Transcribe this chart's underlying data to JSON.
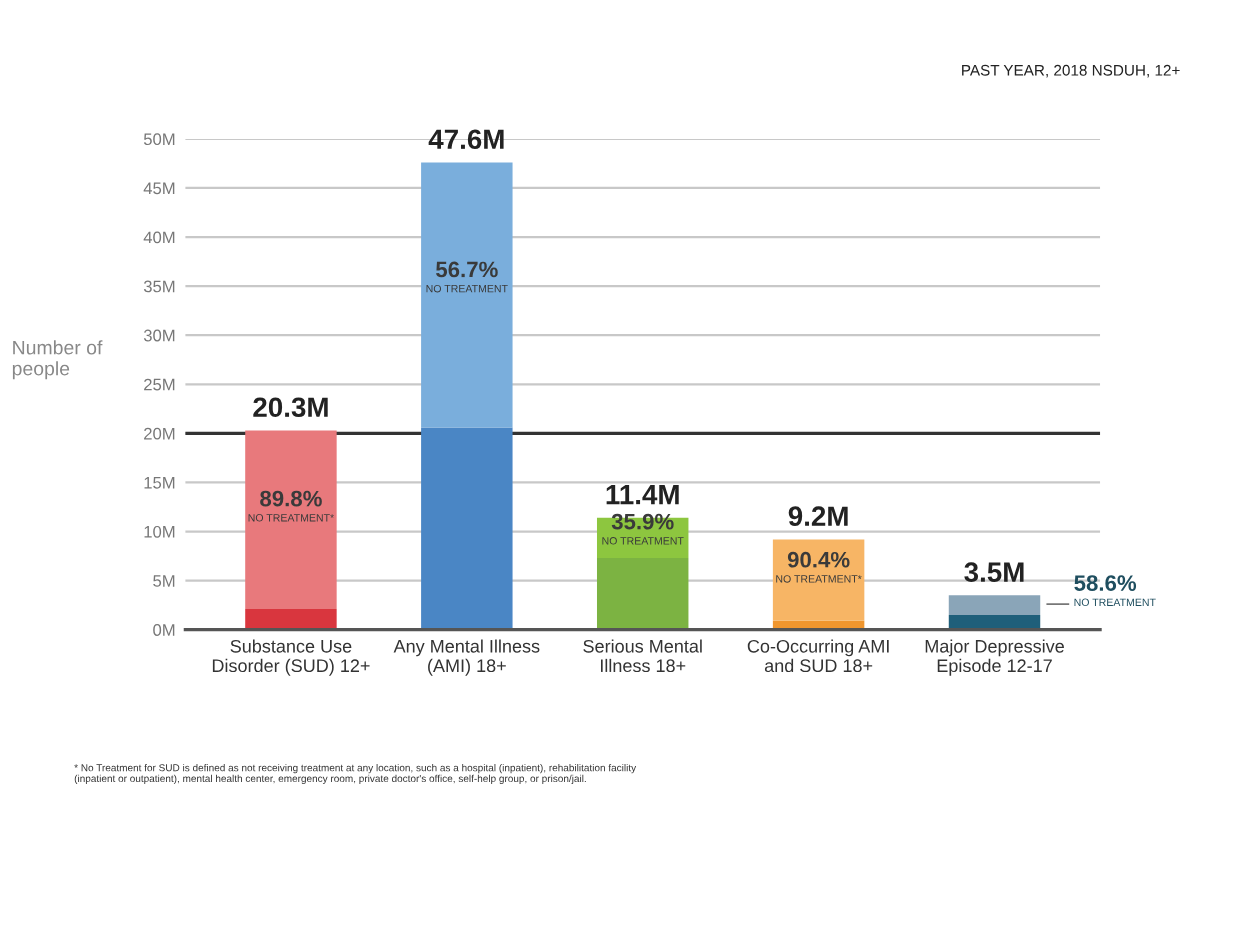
{
  "chart_data": {
    "type": "bar",
    "stacked": true,
    "subtitle": "PAST YEAR, 2018 NSDUH, 12+",
    "ylabel": "Number of\npeople",
    "categories": [
      "Substance Use\nDisorder (SUD) 12+",
      "Any Mental Illness\n(AMI) 18+",
      "Serious Mental\nIllness 18+",
      "Co-Occurring AMI\nand SUD 18+",
      "Major Depressive\nEpisode 12-17"
    ],
    "series": [
      {
        "colors": [
          "#d9363e",
          "#4a86c5",
          "#7cb342",
          "#f0962e",
          "#1f5f7a"
        ],
        "values": [
          2.1,
          20.6,
          7.3,
          0.9,
          1.5
        ]
      },
      {
        "colors": [
          "#e8797c",
          "#7aaedc",
          "#8dc63f",
          "#f7b565",
          "#8aa5b8"
        ],
        "values": [
          18.2,
          27.0,
          4.1,
          8.3,
          2.0
        ]
      }
    ],
    "totals": [
      "20.3M",
      "47.6M",
      "11.4M",
      "9.2M",
      "3.5M"
    ],
    "ylim": [
      0,
      50
    ],
    "yticks": [
      {
        "value": 0,
        "label": "0M"
      },
      {
        "value": 5,
        "label": "5M"
      },
      {
        "value": 10,
        "label": "10M"
      },
      {
        "value": 15,
        "label": "15M"
      },
      {
        "value": 20,
        "label": "20M"
      },
      {
        "value": 25,
        "label": "25M"
      },
      {
        "value": 30,
        "label": "30M"
      },
      {
        "value": 35,
        "label": "35M"
      },
      {
        "value": 40,
        "label": "40M"
      },
      {
        "value": 45,
        "label": "45M"
      },
      {
        "value": 50,
        "label": "50M"
      }
    ],
    "grid": "y",
    "ref_lines": [
      {
        "axis": "y",
        "value": 20,
        "color": "#333333"
      }
    ],
    "annotations": [
      "89.8%\nNO TREATMENT*",
      "56.7%\nNO TREATMENT",
      "35.9%\nNO TREATMENT",
      "90.4%\nNO TREATMENT*",
      "58.6%\nNO TREATMENT",
      "* No Treatment for SUD is defined as not receiving treatment at any location, such as a hospital (inpatient), rehabilitation facility\n(inpatient or outpatient), mental health center, emergency room, private doctor's office, self-help group, or prison/jail."
    ]
  }
}
